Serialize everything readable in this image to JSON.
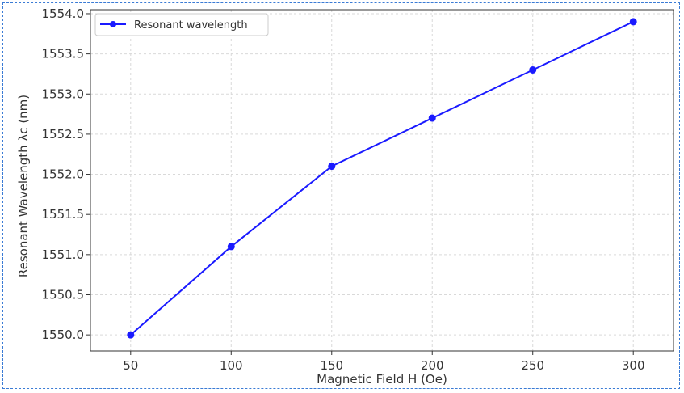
{
  "chart_data": {
    "type": "line",
    "x": [
      50,
      100,
      150,
      200,
      250,
      300
    ],
    "series": [
      {
        "name": "Resonant wavelength",
        "values": [
          1550.0,
          1551.1,
          1552.1,
          1552.7,
          1553.3,
          1553.9
        ]
      }
    ],
    "xlabel": "Magnetic Field H (Oe)",
    "ylabel": "Resonant Wavelength λc (nm)",
    "xlim": [
      30,
      320
    ],
    "ylim": [
      1549.8,
      1554.05
    ],
    "xticks": [
      50,
      100,
      150,
      200,
      250,
      300
    ],
    "yticks": [
      1550.0,
      1550.5,
      1551.0,
      1551.5,
      1552.0,
      1552.5,
      1553.0,
      1553.5,
      1554.0
    ],
    "ytick_labels": [
      "1550.0",
      "1550.5",
      "1551.0",
      "1551.5",
      "1552.0",
      "1552.5",
      "1553.0",
      "1553.5",
      "1554.0"
    ],
    "grid": true,
    "legend_position": "top-left",
    "line_color": "#1a1aff"
  }
}
